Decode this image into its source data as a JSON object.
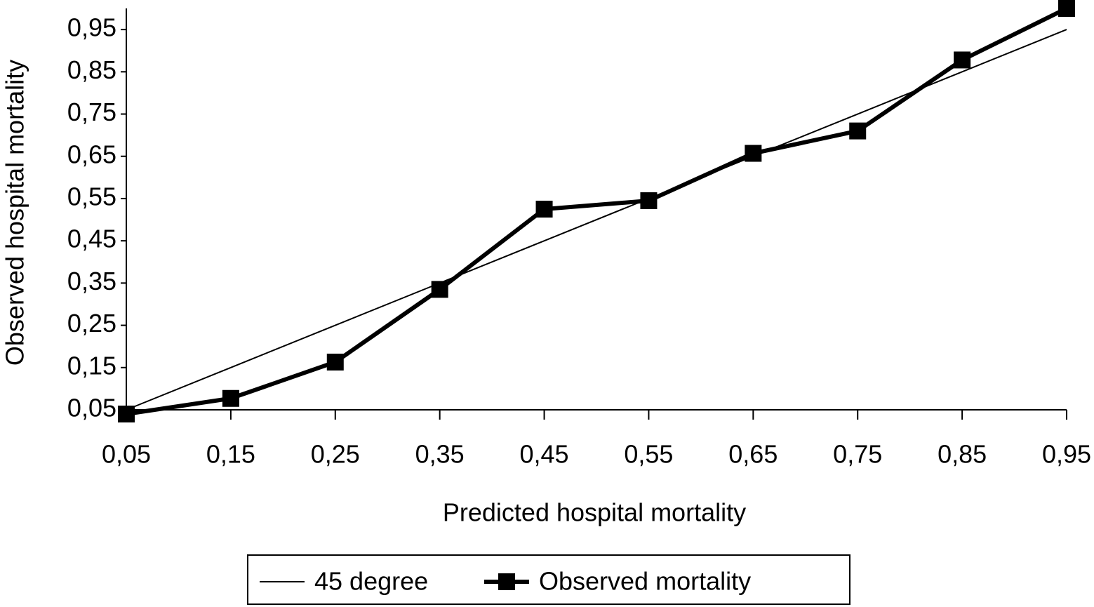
{
  "chart_data": {
    "type": "line",
    "x_label": "Predicted hospital mortality",
    "y_label": "Observed hospital mortality",
    "x": [
      0.05,
      0.15,
      0.25,
      0.35,
      0.45,
      0.55,
      0.65,
      0.75,
      0.85,
      0.95
    ],
    "series": [
      {
        "name": "45 degree",
        "color": "#000000",
        "marker": false,
        "values": [
          0.05,
          0.15,
          0.25,
          0.35,
          0.45,
          0.55,
          0.65,
          0.75,
          0.85,
          0.95
        ]
      },
      {
        "name": "Observed mortality",
        "color": "#000000",
        "marker": true,
        "values": [
          0.04,
          0.077,
          0.163,
          0.335,
          0.525,
          0.545,
          0.657,
          0.71,
          0.878,
          1.0
        ]
      }
    ],
    "xlim": [
      0.05,
      0.95
    ],
    "ylim": [
      0.05,
      1.0
    ],
    "xticks": [
      {
        "value": 0.05,
        "label": "0,05"
      },
      {
        "value": 0.15,
        "label": "0,15"
      },
      {
        "value": 0.25,
        "label": "0,25"
      },
      {
        "value": 0.35,
        "label": "0,35"
      },
      {
        "value": 0.45,
        "label": "0,45"
      },
      {
        "value": 0.55,
        "label": "0,55"
      },
      {
        "value": 0.65,
        "label": "0,65"
      },
      {
        "value": 0.75,
        "label": "0,75"
      },
      {
        "value": 0.85,
        "label": "0,85"
      },
      {
        "value": 0.95,
        "label": "0,95"
      }
    ],
    "yticks": [
      {
        "value": 0.05,
        "label": "0,05"
      },
      {
        "value": 0.15,
        "label": "0,15"
      },
      {
        "value": 0.25,
        "label": "0,25"
      },
      {
        "value": 0.35,
        "label": "0,35"
      },
      {
        "value": 0.45,
        "label": "0,45"
      },
      {
        "value": 0.55,
        "label": "0,55"
      },
      {
        "value": 0.65,
        "label": "0,65"
      },
      {
        "value": 0.75,
        "label": "0,75"
      },
      {
        "value": 0.85,
        "label": "0,85"
      },
      {
        "value": 0.95,
        "label": "0,95"
      }
    ],
    "grid": false,
    "legend": "bottom"
  }
}
